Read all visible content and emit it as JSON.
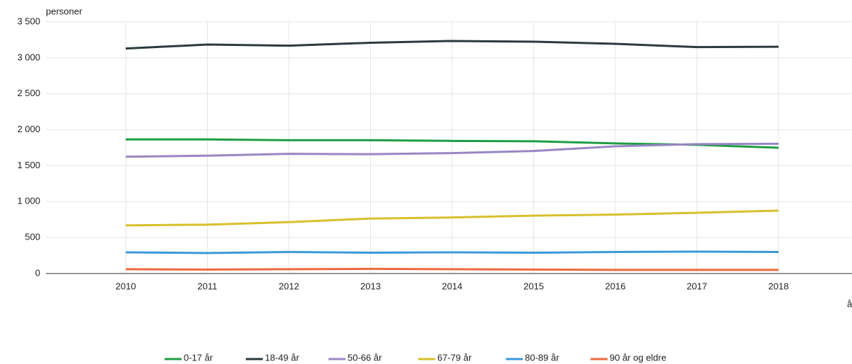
{
  "chart_data": {
    "type": "line",
    "title": "personer",
    "x_label": "år",
    "x": [
      2010,
      2011,
      2012,
      2013,
      2014,
      2015,
      2016,
      2017,
      2018
    ],
    "xlim": [
      2009,
      2019
    ],
    "xticks": [
      2010,
      2011,
      2012,
      2013,
      2014,
      2015,
      2016,
      2017,
      2018
    ],
    "ylim": [
      0,
      3500
    ],
    "yticks": [
      0,
      500,
      {
        "value": 1000,
        "label": "1 000"
      },
      {
        "value": 1500,
        "label": "1 500"
      },
      {
        "value": 2000,
        "label": "2 000"
      },
      {
        "value": 2500,
        "label": "2 500"
      },
      {
        "value": 3000,
        "label": "3 000"
      },
      {
        "value": 3500,
        "label": "3 500"
      }
    ],
    "grid": true,
    "legend": "bottom",
    "series": [
      {
        "name": "0-17 år",
        "color": "#1f9d45",
        "values": [
          1865,
          1865,
          1855,
          1855,
          1845,
          1840,
          1810,
          1790,
          1750
        ]
      },
      {
        "name": "18-49 år",
        "color": "#2b3b3e",
        "values": [
          3130,
          3185,
          3170,
          3210,
          3235,
          3225,
          3195,
          3150,
          3155
        ]
      },
      {
        "name": "50-66 år",
        "color": "#9a86c5",
        "values": [
          1625,
          1640,
          1665,
          1660,
          1675,
          1705,
          1770,
          1800,
          1805
        ]
      },
      {
        "name": "67-79 år",
        "color": "#d8c02c",
        "values": [
          670,
          680,
          715,
          765,
          780,
          805,
          820,
          845,
          875
        ]
      },
      {
        "name": "80-89 år",
        "color": "#3a99d8",
        "values": [
          295,
          285,
          300,
          290,
          295,
          290,
          300,
          305,
          300
        ]
      },
      {
        "name": "90 år og eldre",
        "color": "#ec6a3d",
        "values": [
          60,
          55,
          60,
          65,
          60,
          55,
          50,
          50,
          50
        ]
      }
    ]
  }
}
